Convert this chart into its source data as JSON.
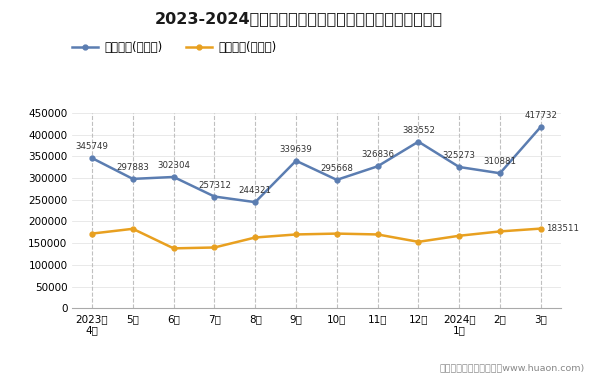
{
  "title": "2023-2024年陕西省商品收发货人所在地进、出口额统计",
  "x_labels": [
    "2023年\n4月",
    "5月",
    "6月",
    "7月",
    "8月",
    "9月",
    "10月",
    "11月",
    "12月",
    "2024年\n1月",
    "2月",
    "3月"
  ],
  "export_values": [
    345749,
    297883,
    302304,
    257312,
    244321,
    339639,
    295668,
    326836,
    383552,
    325273,
    310881,
    417732
  ],
  "import_values": [
    172000,
    183000,
    138000,
    140000,
    163000,
    170000,
    172000,
    170000,
    153000,
    167000,
    177000,
    183511
  ],
  "export_color": "#5b7db1",
  "import_color": "#e8a020",
  "export_label": "出口总额(万美元)",
  "import_label": "进口总额(万美元)",
  "footer": "制图：华经产业研究院（www.huaon.com)",
  "ylim": [
    0,
    450000
  ],
  "yticks": [
    0,
    50000,
    100000,
    150000,
    200000,
    250000,
    300000,
    350000,
    400000,
    450000
  ],
  "bg_color": "#ffffff",
  "plot_bg_color": "#ffffff",
  "grid_color": "#e0e0e0",
  "dashed_line_color": "#c0c0c0",
  "label_color": "#333333",
  "title_color": "#1a1a1a"
}
